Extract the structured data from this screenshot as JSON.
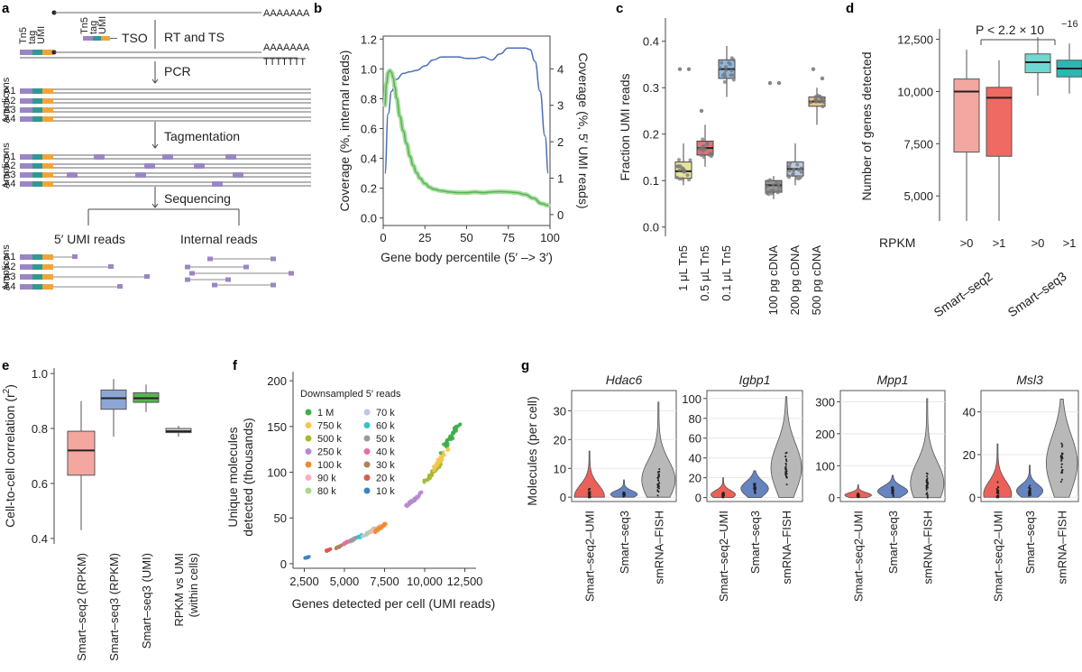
{
  "panel_labels": [
    "a",
    "b",
    "c",
    "d",
    "e",
    "f",
    "g"
  ],
  "colors": {
    "blue": "#4a6fb5",
    "green": "#58b44f",
    "red": "#e8453c",
    "teal": "#2ab3a3",
    "gray": "#9a9a9a",
    "tn5": "#9b86c4",
    "tag": "#2f9a8f",
    "umi": "#f0a439"
  },
  "schematic": {
    "poly_a": "AAAAAAA",
    "poly_t": "TTTTTTT",
    "oligo_labels": [
      "Tn5",
      "tag",
      "UMI"
    ],
    "tso": "TSO",
    "steps": [
      "RT and TS",
      "PCR",
      "Tagmentation",
      "Sequencing"
    ],
    "amplicons_label": "Amplicons",
    "amplicon_names": [
      "A1",
      "A2",
      "A3",
      "A4"
    ],
    "umi_reads": "5′ UMI reads",
    "internal_reads": "Internal reads"
  },
  "chart_data": [
    {
      "panel": "b",
      "type": "line",
      "xlabel": "Gene body percentile (5′ –> 3′)",
      "ylabel": "Coverage (%, internal reads)",
      "y2label": "Coverage (%, 5′ UMI reads)",
      "xlim": [
        0,
        100
      ],
      "ylim": [
        -0.05,
        1.22
      ],
      "y2lim": [
        -0.3,
        4.9
      ],
      "xticks": [
        "0",
        "25",
        "50",
        "75",
        "100"
      ],
      "yticks": [
        "0.0",
        "0.2",
        "0.4",
        "0.6",
        "0.8",
        "1.0",
        "1.2"
      ],
      "y2ticks": [
        "0",
        "1",
        "2",
        "3",
        "4"
      ],
      "series": [
        {
          "axis": "left",
          "color": "#4a6fb5",
          "x": [
            1,
            3,
            5,
            8,
            12,
            16,
            20,
            25,
            30,
            35,
            40,
            45,
            50,
            55,
            60,
            65,
            70,
            75,
            80,
            85,
            88,
            91,
            94,
            97,
            99
          ],
          "y": [
            0.3,
            0.7,
            0.85,
            0.93,
            0.97,
            0.98,
            0.99,
            1.02,
            1.06,
            1.08,
            1.08,
            1.08,
            1.07,
            1.07,
            1.08,
            1.06,
            1.1,
            1.14,
            1.14,
            1.14,
            1.13,
            1.05,
            0.85,
            0.55,
            0.3
          ]
        },
        {
          "axis": "right",
          "color": "#58b44f",
          "x": [
            1,
            2,
            3,
            4,
            5,
            6,
            7,
            8,
            10,
            12,
            14,
            16,
            18,
            20,
            22,
            25,
            28,
            30,
            35,
            40,
            45,
            50,
            55,
            60,
            65,
            70,
            75,
            80,
            85,
            90,
            95,
            99
          ],
          "y": [
            3.0,
            3.6,
            3.9,
            3.95,
            3.9,
            3.75,
            3.5,
            3.2,
            2.7,
            2.3,
            1.95,
            1.6,
            1.35,
            1.15,
            1.0,
            0.85,
            0.75,
            0.7,
            0.65,
            0.62,
            0.6,
            0.6,
            0.62,
            0.6,
            0.62,
            0.63,
            0.62,
            0.6,
            0.55,
            0.45,
            0.3,
            0.25
          ]
        }
      ]
    },
    {
      "panel": "c",
      "type": "box",
      "ylabel": "Fraction UMI reads",
      "ylim": [
        -0.02,
        0.45
      ],
      "yticks": [
        "0.0",
        "0.1",
        "0.2",
        "0.3",
        "0.4"
      ],
      "categories": [
        "1 μL Tn5",
        "0.5 μL Tn5",
        "0.1 μL Tn5",
        "100 pg cDNA",
        "200 pg cDNA",
        "500 pg cDNA"
      ],
      "colors": [
        "#e6e39a",
        "#e57373",
        "#90b8e0",
        "#9a9a9a",
        "#b9cbe8",
        "#e8c390"
      ],
      "boxes": [
        {
          "min": 0.09,
          "q1": 0.105,
          "median": 0.12,
          "q3": 0.14,
          "max": 0.18,
          "outliers": [
            0.34,
            0.34
          ]
        },
        {
          "min": 0.13,
          "q1": 0.155,
          "median": 0.17,
          "q3": 0.185,
          "max": 0.22,
          "outliers": [
            0.25
          ]
        },
        {
          "min": 0.28,
          "q1": 0.32,
          "median": 0.34,
          "q3": 0.36,
          "max": 0.39,
          "outliers": []
        },
        {
          "min": 0.06,
          "q1": 0.075,
          "median": 0.09,
          "q3": 0.1,
          "max": 0.11,
          "outliers": [
            0.31,
            0.31
          ]
        },
        {
          "min": 0.09,
          "q1": 0.11,
          "median": 0.125,
          "q3": 0.14,
          "max": 0.18,
          "outliers": []
        },
        {
          "min": 0.22,
          "q1": 0.26,
          "median": 0.27,
          "q3": 0.28,
          "max": 0.3,
          "outliers": [
            0.34,
            0.32
          ]
        }
      ]
    },
    {
      "panel": "d",
      "type": "box",
      "ylabel": "Number of genes detected",
      "ylim": [
        3800,
        13000
      ],
      "yticks": [
        "5,000",
        "7,500",
        "10,000",
        "12,500"
      ],
      "rpkm_label": "RPKM",
      "categories": [
        ">0",
        ">1",
        ">0",
        ">1"
      ],
      "colors": [
        "#f4a6a0",
        "#ee6a62",
        "#6ed9d0",
        "#2ab8b3"
      ],
      "groups": [
        "Smart–seq2",
        "Smart–seq3"
      ],
      "group_colors": [
        "#e8453c",
        "#2ab3a3"
      ],
      "annotation": "P < 2.2 × 10",
      "annotation_exp": "−16",
      "boxes": [
        {
          "min": 3800,
          "q1": 7100,
          "median": 10000,
          "q3": 10600,
          "max": 12000
        },
        {
          "min": 3800,
          "q1": 6900,
          "median": 9700,
          "q3": 10200,
          "max": 11500
        },
        {
          "min": 9800,
          "q1": 10900,
          "median": 11400,
          "q3": 11800,
          "max": 12600
        },
        {
          "min": 9900,
          "q1": 10700,
          "median": 11100,
          "q3": 11500,
          "max": 12300
        }
      ]
    },
    {
      "panel": "e",
      "type": "box",
      "ylabel": "Cell-to-cell correlation (r",
      "ylabel_sup": "2",
      "ylabel_tail": ")",
      "ylim": [
        0.38,
        1.02
      ],
      "yticks": [
        "0.4",
        "0.6",
        "0.8",
        "1.0"
      ],
      "categories": [
        "Smart–seq2 (RPKM)",
        "Smart–seq3 (RPKM)",
        "Smart–seq3 (UMI)",
        "RPKM vs UMI"
      ],
      "category_line2": [
        "",
        "",
        "",
        "(within cells)"
      ],
      "label_colors": [
        "#e8453c",
        "#4a6fb5",
        "#58b44f",
        "#222222"
      ],
      "colors": [
        "#f4a6a0",
        "#8da6d6",
        "#58b44f",
        "#cfcfcf"
      ],
      "boxes": [
        {
          "min": 0.43,
          "q1": 0.63,
          "median": 0.72,
          "q3": 0.79,
          "max": 0.9
        },
        {
          "min": 0.77,
          "q1": 0.87,
          "median": 0.91,
          "q3": 0.94,
          "max": 0.98
        },
        {
          "min": 0.86,
          "q1": 0.895,
          "median": 0.91,
          "q3": 0.93,
          "max": 0.96
        },
        {
          "min": 0.77,
          "q1": 0.785,
          "median": 0.79,
          "q3": 0.8,
          "max": 0.81
        }
      ]
    },
    {
      "panel": "f",
      "type": "scatter",
      "xlabel": "Genes detected per cell (UMI reads)",
      "ylabel": "Unique molecules",
      "ylabel2": "detected (thousands)",
      "legend_title": "Downsampled 5′ reads",
      "xlim": [
        1800,
        13200
      ],
      "ylim": [
        -5,
        210
      ],
      "xticks": [
        "2,500",
        "5,000",
        "7,500",
        "10,000",
        "12,500"
      ],
      "yticks": [
        "0",
        "50",
        "100",
        "150",
        "200"
      ],
      "legend": [
        {
          "name": "1 M",
          "color": "#3fae49"
        },
        {
          "name": "750 k",
          "color": "#f2c84b"
        },
        {
          "name": "500 k",
          "color": "#a8b92e"
        },
        {
          "name": "250 k",
          "color": "#b58ad0"
        },
        {
          "name": "100 k",
          "color": "#f28a30"
        },
        {
          "name": "90 k",
          "color": "#f6b0bf"
        },
        {
          "name": "80 k",
          "color": "#a8d88a"
        },
        {
          "name": "70 k",
          "color": "#bcc6e8"
        },
        {
          "name": "60 k",
          "color": "#34c2c9"
        },
        {
          "name": "50 k",
          "color": "#9b9b9b"
        },
        {
          "name": "40 k",
          "color": "#e36fa2"
        },
        {
          "name": "30 k",
          "color": "#b0825a"
        },
        {
          "name": "20 k",
          "color": "#d95b4f"
        },
        {
          "name": "10 k",
          "color": "#3c84c0"
        }
      ],
      "clusters": [
        {
          "name": "10 k",
          "x": 2700,
          "y": 7,
          "n": 12
        },
        {
          "name": "20 k",
          "x": 4000,
          "y": 15,
          "n": 14
        },
        {
          "name": "30 k",
          "x": 4700,
          "y": 19,
          "n": 14
        },
        {
          "name": "40 k",
          "x": 5200,
          "y": 24,
          "n": 14
        },
        {
          "name": "50 k",
          "x": 5600,
          "y": 27,
          "n": 14
        },
        {
          "name": "60 k",
          "x": 6000,
          "y": 30,
          "n": 14
        },
        {
          "name": "70 k",
          "x": 6400,
          "y": 33,
          "n": 14
        },
        {
          "name": "80 k",
          "x": 6700,
          "y": 36,
          "n": 14
        },
        {
          "name": "90 k",
          "x": 7000,
          "y": 38,
          "n": 14
        },
        {
          "name": "100 k",
          "x": 7300,
          "y": 40,
          "n": 30
        },
        {
          "name": "250 k",
          "x": 9300,
          "y": 70,
          "n": 40
        },
        {
          "name": "500 k",
          "x": 10500,
          "y": 100,
          "n": 45
        },
        {
          "name": "750 k",
          "x": 11000,
          "y": 115,
          "n": 40
        },
        {
          "name": "1 M",
          "x": 11700,
          "y": 140,
          "n": 40
        }
      ]
    },
    {
      "panel": "g",
      "type": "violin",
      "ylabel": "Molecules (per cell)",
      "categories": [
        "Smart–seq2–UMI",
        "Smart–seq3",
        "smRNA–FISH"
      ],
      "category_colors": [
        "#e8453c",
        "#4a6fb5",
        "#888888"
      ],
      "fills": [
        "#e8453c",
        "#4a6fb5",
        "#b8b8b8"
      ],
      "genes": [
        {
          "name": "Hdac6",
          "ylim": [
            -1.5,
            37
          ],
          "yticks": [
            0,
            10,
            20,
            30
          ],
          "tick_labels": [
            "0",
            "10",
            "20",
            "30"
          ],
          "violins": [
            {
              "max": 16,
              "peak": 0.3,
              "width": 0.9
            },
            {
              "max": 6,
              "peak": 1,
              "width": 0.8
            },
            {
              "max": 33,
              "peak": 6,
              "width": 1.0
            }
          ]
        },
        {
          "name": "Igbp1",
          "ylim": [
            -4,
            108
          ],
          "yticks": [
            0,
            20,
            40,
            60,
            80,
            100
          ],
          "tick_labels": [
            "0",
            "20",
            "40",
            "60",
            "80",
            "100"
          ],
          "violins": [
            {
              "max": 20,
              "peak": 3,
              "width": 0.8
            },
            {
              "max": 27,
              "peak": 9,
              "width": 0.9
            },
            {
              "max": 102,
              "peak": 30,
              "width": 1.0
            }
          ]
        },
        {
          "name": "Mpp1",
          "ylim": [
            -12,
            335
          ],
          "yticks": [
            0,
            100,
            200,
            300
          ],
          "tick_labels": [
            "0",
            "100",
            "200",
            "300"
          ],
          "violins": [
            {
              "max": 40,
              "peak": 8,
              "width": 0.8
            },
            {
              "max": 70,
              "peak": 20,
              "width": 0.9
            },
            {
              "max": 310,
              "peak": 45,
              "width": 1.0
            }
          ]
        },
        {
          "name": "Msl3",
          "ylim": [
            -2,
            50
          ],
          "yticks": [
            0,
            20,
            40
          ],
          "tick_labels": [
            "0",
            "20",
            "40"
          ],
          "violins": [
            {
              "max": 25,
              "peak": 1.5,
              "width": 0.9
            },
            {
              "max": 15,
              "peak": 3,
              "width": 0.85
            },
            {
              "max": 46,
              "peak": 16,
              "width": 1.0
            }
          ]
        }
      ]
    }
  ]
}
